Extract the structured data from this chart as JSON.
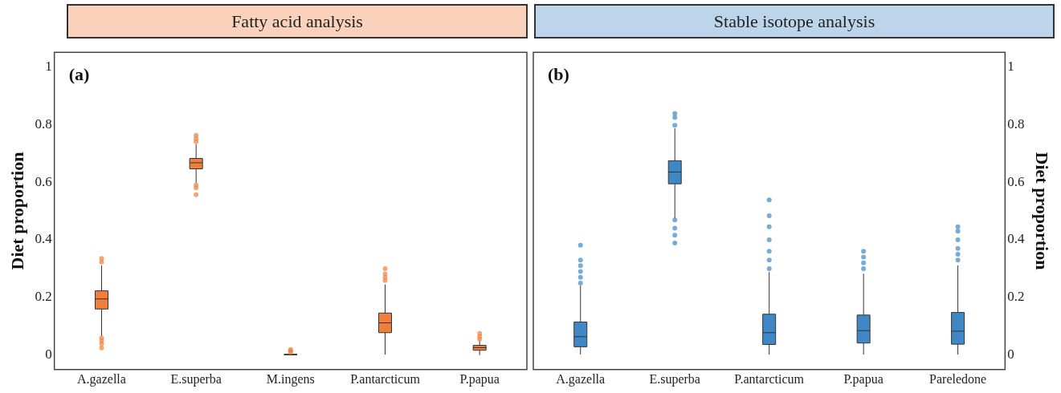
{
  "chart_data": [
    {
      "type": "box",
      "title": "Fatty acid analysis",
      "ylabel": "Diet proportion",
      "annotations": [
        "(a)"
      ],
      "categories": [
        "A.gazella",
        "E.superba",
        "M.ingens",
        "P.antarcticum",
        "P.papua"
      ],
      "ylim": [
        -0.05,
        1.05
      ],
      "yticks": [
        0,
        0.2,
        0.4,
        0.6,
        0.8,
        1
      ],
      "grid": false,
      "series": [
        {
          "color": "#f07f3c",
          "boxes": [
            {
              "low": 0.066,
              "q1": 0.16,
              "median": 0.195,
              "q3": 0.223,
              "high": 0.311,
              "outliers": [
                0.335,
                0.323,
                0.06,
                0.05,
                0.04,
                0.025
              ]
            },
            {
              "low": 0.597,
              "q1": 0.646,
              "median": 0.667,
              "q3": 0.682,
              "high": 0.731,
              "outliers": [
                0.762,
                0.75,
                0.74,
                0.59,
                0.58,
                0.556
              ]
            },
            {
              "low": 0,
              "q1": 0.001,
              "median": 0.002,
              "q3": 0.003,
              "high": 0.006,
              "outliers": [
                0.01,
                0.015,
                0.02
              ]
            },
            {
              "low": 0.002,
              "q1": 0.078,
              "median": 0.112,
              "q3": 0.146,
              "high": 0.245,
              "outliers": [
                0.259,
                0.27,
                0.282,
                0.3
              ]
            },
            {
              "low": 0,
              "q1": 0.017,
              "median": 0.026,
              "q3": 0.034,
              "high": 0.049,
              "outliers": [
                0.055,
                0.065,
                0.075
              ]
            }
          ]
        }
      ]
    },
    {
      "type": "box",
      "title": "Stable isotope analysis",
      "y2label": "Diet proportion",
      "annotations": [
        "(b)"
      ],
      "categories": [
        "A.gazella",
        "E.superba",
        "P.antarcticum",
        "P.papua",
        "Pareledone"
      ],
      "y2lim": [
        -0.05,
        1.05
      ],
      "y2ticks": [
        0,
        0.2,
        0.4,
        0.6,
        0.8,
        1
      ],
      "grid": false,
      "series": [
        {
          "color": "#3f88c5",
          "axis": "y2",
          "boxes": [
            {
              "low": 0.002,
              "q1": 0.029,
              "median": 0.064,
              "q3": 0.115,
              "high": 0.241,
              "outliers": [
                0.25,
                0.27,
                0.29,
                0.31,
                0.33,
                0.381
              ]
            },
            {
              "low": 0.474,
              "q1": 0.594,
              "median": 0.635,
              "q3": 0.674,
              "high": 0.786,
              "outliers": [
                0.797,
                0.824,
                0.838,
                0.469,
                0.44,
                0.416,
                0.389
              ]
            },
            {
              "low": 0.002,
              "q1": 0.037,
              "median": 0.078,
              "q3": 0.142,
              "high": 0.288,
              "outliers": [
                0.3,
                0.33,
                0.36,
                0.4,
                0.445,
                0.483,
                0.538
              ]
            },
            {
              "low": 0.002,
              "q1": 0.042,
              "median": 0.085,
              "q3": 0.139,
              "high": 0.282,
              "outliers": [
                0.3,
                0.32,
                0.34,
                0.36
              ]
            },
            {
              "low": 0.002,
              "q1": 0.038,
              "median": 0.083,
              "q3": 0.148,
              "high": 0.311,
              "outliers": [
                0.33,
                0.35,
                0.37,
                0.4,
                0.43,
                0.445
              ]
            }
          ]
        }
      ]
    }
  ]
}
